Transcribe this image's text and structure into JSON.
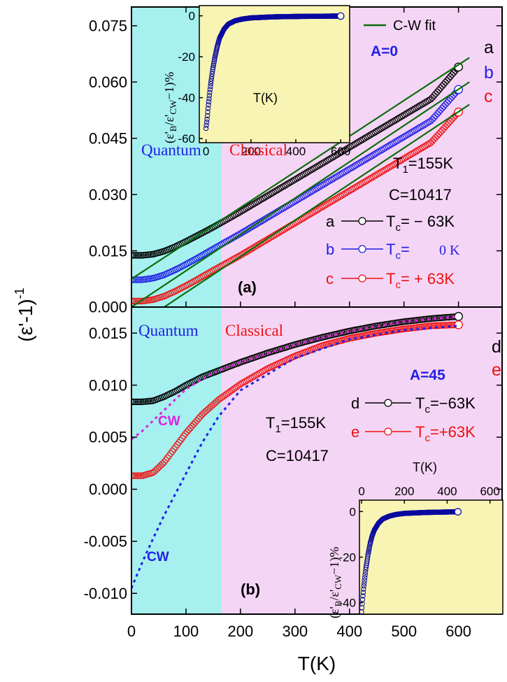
{
  "colors": {
    "black": "#000000",
    "blue": "#1f1fe6",
    "red": "#ee1111",
    "green": "#0a6e0a",
    "magenta": "#e020e0",
    "quantum_bg": "#a6f0f0",
    "classical_bg": "#f5d5f5",
    "inset_bg": "#f8f4b4",
    "inset_marker": "#0a0aa0"
  },
  "figure": {
    "x_axis_label": "T(K)",
    "y_axis_label_base": "(ε'-1)",
    "y_axis_label_sup": "-1",
    "x_ticks": [
      "0",
      "100",
      "200",
      "300",
      "400",
      "500",
      "600"
    ]
  },
  "panel_a": {
    "panel_label": "(a)",
    "a_param": "A=0",
    "region_quantum": "Quantum",
    "region_classical": "Classical",
    "t1_text": "T",
    "t1_sub": "1",
    "t1_rest": "=155K",
    "c_text": "C=10417",
    "fit_legend": "C-W fit",
    "curve_tag_a": "a",
    "curve_tag_b": "b",
    "curve_tag_c": "c",
    "legend_a_prefix": "a",
    "legend_a_tc": "T",
    "legend_a_sub": "c",
    "legend_a_val": "= − 63K",
    "legend_b_prefix": "b",
    "legend_b_tc": "T",
    "legend_b_sub": "c",
    "legend_b_eq": "=",
    "legend_b_val": "0 K",
    "legend_c_prefix": "c",
    "legend_c_tc": "T",
    "legend_c_sub": "c",
    "legend_c_val": "= + 63K",
    "y_ticks": [
      "0.000",
      "0.015",
      "0.030",
      "0.045",
      "0.060",
      "0.075"
    ]
  },
  "panel_b": {
    "panel_label": "(b)",
    "a_param": "A=45",
    "region_quantum": "Quantum",
    "region_classical": "Classical",
    "t1_text": "T",
    "t1_sub": "1",
    "t1_rest": "=155K",
    "c_text": "C=10417",
    "cw_upper": "CW",
    "cw_lower": "CW",
    "curve_tag_d": "d",
    "curve_tag_e": "e",
    "legend_d_prefix": "d",
    "legend_d_tc": "T",
    "legend_d_sub": "c",
    "legend_d_val": "=−63K",
    "legend_e_prefix": "e",
    "legend_e_tc": "T",
    "legend_e_sub": "c",
    "legend_e_val": "=+63K",
    "y_ticks": [
      "-0.010",
      "-0.005",
      "0.000",
      "0.005",
      "0.010",
      "0.015"
    ]
  },
  "inset_a": {
    "x_label": "T(K)",
    "y_label_pre": "(ε'",
    "y_label_sub1": "B",
    "y_label_mid": "/ε'",
    "y_label_sub2": "CW",
    "y_label_post": "−1)%",
    "x_ticks": [
      "0",
      "200",
      "400",
      "600"
    ],
    "y_ticks": [
      "0",
      "-20",
      "-40",
      "-60"
    ]
  },
  "inset_b": {
    "x_label": "T(K)",
    "y_label_pre": "(ε'",
    "y_label_sub1": "B",
    "y_label_mid": "/ε'",
    "y_label_sub2": "CW",
    "y_label_post": "−1)%",
    "x_ticks": [
      "0",
      "200",
      "400",
      "600"
    ],
    "y_ticks": [
      "0",
      "-20",
      "-40"
    ]
  },
  "chart_data": [
    {
      "type": "scatter",
      "panel": "(a)",
      "xlabel": "T(K)",
      "ylabel": "(ε'-1)^-1",
      "xlim": [
        0,
        680
      ],
      "ylim": [
        0,
        0.08
      ],
      "series": [
        {
          "name": "a",
          "x": [
            0,
            20,
            40,
            60,
            80,
            100,
            120,
            150,
            200,
            250,
            300,
            350,
            400,
            450,
            500,
            550,
            600
          ],
          "y": [
            0.0138,
            0.0138,
            0.0141,
            0.0149,
            0.0161,
            0.0175,
            0.019,
            0.0213,
            0.0254,
            0.0297,
            0.034,
            0.0383,
            0.0426,
            0.0469,
            0.0512,
            0.0555,
            0.064
          ]
        },
        {
          "name": "b",
          "x": [
            0,
            20,
            40,
            60,
            80,
            100,
            120,
            150,
            200,
            250,
            300,
            350,
            400,
            450,
            500,
            550,
            600
          ],
          "y": [
            0.0073,
            0.0073,
            0.0077,
            0.0086,
            0.0099,
            0.0114,
            0.013,
            0.0155,
            0.0196,
            0.0239,
            0.0282,
            0.0325,
            0.0368,
            0.0411,
            0.0454,
            0.0497,
            0.058
          ]
        },
        {
          "name": "c",
          "x": [
            0,
            20,
            40,
            60,
            80,
            100,
            120,
            150,
            200,
            250,
            300,
            350,
            400,
            450,
            500,
            550,
            600
          ],
          "y": [
            0.0016,
            0.0016,
            0.002,
            0.0029,
            0.0042,
            0.0057,
            0.0073,
            0.0098,
            0.0138,
            0.0181,
            0.0224,
            0.0267,
            0.031,
            0.0353,
            0.0396,
            0.0439,
            0.052
          ]
        }
      ],
      "fits": [
        {
          "name": "C-W fit a",
          "x": [
            0,
            620
          ],
          "y": [
            0.0075,
            0.0665
          ]
        },
        {
          "name": "C-W fit b",
          "x": [
            0,
            620
          ],
          "y": [
            0.0,
            0.06
          ]
        },
        {
          "name": "C-W fit c",
          "x": [
            60,
            620
          ],
          "y": [
            0.0,
            0.054
          ]
        }
      ]
    },
    {
      "type": "scatter",
      "panel": "(b)",
      "xlabel": "T(K)",
      "ylabel": "(ε'-1)^-1",
      "xlim": [
        0,
        680
      ],
      "ylim": [
        -0.012,
        0.0175
      ],
      "series": [
        {
          "name": "d",
          "x": [
            0,
            20,
            40,
            60,
            80,
            100,
            130,
            160,
            200,
            250,
            300,
            350,
            400,
            450,
            500,
            550,
            600
          ],
          "y": [
            0.0084,
            0.0084,
            0.0085,
            0.0089,
            0.0094,
            0.01,
            0.0108,
            0.0114,
            0.0122,
            0.0131,
            0.0139,
            0.0146,
            0.0152,
            0.0157,
            0.0161,
            0.0164,
            0.0166
          ]
        },
        {
          "name": "e",
          "x": [
            0,
            20,
            40,
            60,
            80,
            100,
            130,
            160,
            200,
            250,
            300,
            350,
            400,
            450,
            500,
            550,
            600
          ],
          "y": [
            0.0013,
            0.0013,
            0.0016,
            0.0026,
            0.004,
            0.0054,
            0.0072,
            0.0086,
            0.0101,
            0.0116,
            0.0128,
            0.0138,
            0.0145,
            0.015,
            0.0154,
            0.0157,
            0.0158
          ]
        }
      ],
      "fits": [
        {
          "name": "CW d",
          "x": [
            0,
            20,
            40,
            60,
            80,
            100,
            130,
            160,
            200,
            300,
            400,
            500,
            600
          ],
          "y": [
            0.0048,
            0.0056,
            0.0066,
            0.0076,
            0.0086,
            0.0096,
            0.0106,
            0.0114,
            0.0122,
            0.0139,
            0.0152,
            0.0161,
            0.0166
          ]
        },
        {
          "name": "CW e",
          "x": [
            0,
            20,
            40,
            60,
            80,
            100,
            130,
            160,
            200,
            300,
            400,
            500,
            600
          ],
          "y": [
            -0.0095,
            -0.007,
            -0.0047,
            -0.0025,
            -0.0005,
            0.0015,
            0.0045,
            0.007,
            0.0095,
            0.0126,
            0.0144,
            0.0153,
            0.0157
          ]
        }
      ]
    },
    {
      "type": "scatter",
      "panel": "inset (a)",
      "xlabel": "T(K)",
      "ylabel": "(ε'B/ε'CW −1)%",
      "xlim": [
        -30,
        640
      ],
      "ylim": [
        -62,
        5
      ],
      "series": [
        {
          "name": "a",
          "x": [
            0,
            5,
            10,
            20,
            30,
            40,
            50,
            60,
            80,
            100,
            130,
            160,
            200,
            300,
            400,
            500,
            600
          ],
          "y": [
            -55,
            -50,
            -44,
            -34,
            -26,
            -20,
            -15,
            -11,
            -6.5,
            -4,
            -2.4,
            -1.6,
            -1.0,
            -0.5,
            -0.3,
            -0.2,
            -0.1
          ]
        }
      ]
    },
    {
      "type": "scatter",
      "panel": "inset (b)",
      "xlabel": "T(K)",
      "ylabel": "(ε'B/ε'CW −1)%",
      "xlim": [
        -10,
        660
      ],
      "ylim": [
        -45,
        5
      ],
      "series": [
        {
          "name": "e",
          "x": [
            0,
            5,
            10,
            20,
            30,
            40,
            50,
            60,
            80,
            100,
            130,
            160,
            200,
            300,
            400,
            450
          ],
          "y": [
            -44,
            -38,
            -33,
            -25,
            -19,
            -14,
            -10.5,
            -8,
            -5,
            -3.2,
            -2,
            -1.3,
            -0.8,
            -0.4,
            -0.2,
            -0.1
          ]
        }
      ]
    }
  ]
}
